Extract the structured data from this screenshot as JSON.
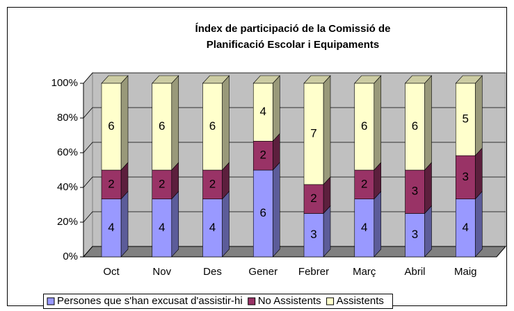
{
  "chart_data": {
    "type": "bar",
    "stack": "percent",
    "title": [
      "Índex de participació de la Comissió de",
      "Planificació Escolar i Equipaments"
    ],
    "categories": [
      "Oct",
      "Nov",
      "Des",
      "Gener",
      "Febrer",
      "Març",
      "Abril",
      "Maig"
    ],
    "series": [
      {
        "name": "Persones que s'han excusat d'assistir-hi",
        "color": "#9999ff",
        "values": [
          4,
          4,
          4,
          6,
          3,
          4,
          3,
          4
        ]
      },
      {
        "name": "No Assistents",
        "color": "#993366",
        "values": [
          2,
          2,
          2,
          2,
          2,
          2,
          3,
          3
        ]
      },
      {
        "name": "Assistents",
        "color": "#ffffcc",
        "values": [
          6,
          6,
          6,
          4,
          7,
          6,
          6,
          5
        ]
      }
    ],
    "ylim": [
      0,
      100
    ],
    "yticks": [
      {
        "value": 0,
        "label": "0%"
      },
      {
        "value": 20,
        "label": "20%"
      },
      {
        "value": 40,
        "label": "40%"
      },
      {
        "value": 60,
        "label": "60%"
      },
      {
        "value": 80,
        "label": "80%"
      },
      {
        "value": 100,
        "label": "100%"
      }
    ],
    "grid": true,
    "legend": "bottom"
  }
}
